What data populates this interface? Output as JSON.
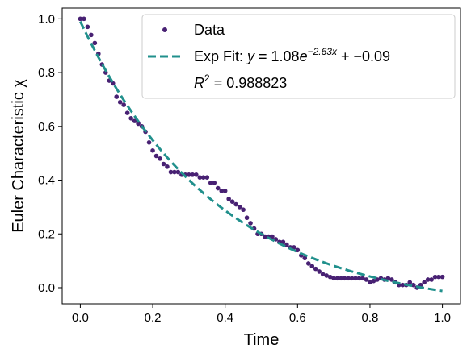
{
  "chart_data": {
    "type": "scatter",
    "xlabel": "Time",
    "ylabel": "Euler Characteristic χ",
    "xlim": [
      -0.05,
      1.05
    ],
    "ylim": [
      -0.06,
      1.04
    ],
    "xticks": [
      0.0,
      0.2,
      0.4,
      0.6,
      0.8,
      1.0
    ],
    "yticks": [
      0.0,
      0.2,
      0.4,
      0.6,
      0.8,
      1.0
    ],
    "xtick_labels": [
      "0.0",
      "0.2",
      "0.4",
      "0.6",
      "0.8",
      "1.0"
    ],
    "ytick_labels": [
      "0.0",
      "0.2",
      "0.4",
      "0.6",
      "0.8",
      "1.0"
    ],
    "grid": false,
    "legend_position": "top-right",
    "colors": {
      "data": "#482173",
      "fit": "#21908c"
    },
    "series": [
      {
        "name": "Data",
        "kind": "scatter",
        "x": [
          0.0,
          0.01,
          0.02,
          0.03,
          0.04,
          0.05,
          0.06,
          0.07,
          0.08,
          0.09,
          0.1,
          0.11,
          0.12,
          0.13,
          0.14,
          0.15,
          0.16,
          0.17,
          0.18,
          0.19,
          0.2,
          0.21,
          0.22,
          0.23,
          0.24,
          0.25,
          0.26,
          0.27,
          0.28,
          0.29,
          0.3,
          0.31,
          0.32,
          0.33,
          0.34,
          0.35,
          0.36,
          0.37,
          0.38,
          0.39,
          0.4,
          0.41,
          0.42,
          0.43,
          0.44,
          0.45,
          0.46,
          0.47,
          0.48,
          0.49,
          0.5,
          0.51,
          0.52,
          0.53,
          0.54,
          0.55,
          0.56,
          0.57,
          0.58,
          0.59,
          0.6,
          0.61,
          0.62,
          0.63,
          0.64,
          0.65,
          0.66,
          0.67,
          0.68,
          0.69,
          0.7,
          0.71,
          0.72,
          0.73,
          0.74,
          0.75,
          0.76,
          0.77,
          0.78,
          0.79,
          0.8,
          0.81,
          0.82,
          0.83,
          0.84,
          0.85,
          0.86,
          0.87,
          0.88,
          0.89,
          0.9,
          0.91,
          0.92,
          0.93,
          0.94,
          0.95,
          0.96,
          0.97,
          0.98,
          0.99,
          1.0
        ],
        "y": [
          1.0,
          1.0,
          0.97,
          0.94,
          0.91,
          0.87,
          0.83,
          0.8,
          0.77,
          0.76,
          0.71,
          0.69,
          0.68,
          0.65,
          0.63,
          0.62,
          0.61,
          0.6,
          0.58,
          0.54,
          0.51,
          0.49,
          0.48,
          0.46,
          0.45,
          0.43,
          0.43,
          0.43,
          0.42,
          0.42,
          0.42,
          0.42,
          0.42,
          0.41,
          0.41,
          0.41,
          0.39,
          0.39,
          0.37,
          0.36,
          0.36,
          0.33,
          0.32,
          0.31,
          0.3,
          0.29,
          0.26,
          0.24,
          0.22,
          0.2,
          0.2,
          0.19,
          0.19,
          0.19,
          0.18,
          0.17,
          0.17,
          0.16,
          0.15,
          0.15,
          0.14,
          0.12,
          0.11,
          0.09,
          0.08,
          0.07,
          0.06,
          0.05,
          0.045,
          0.04,
          0.035,
          0.035,
          0.035,
          0.035,
          0.035,
          0.035,
          0.035,
          0.035,
          0.035,
          0.03,
          0.02,
          0.025,
          0.03,
          0.035,
          0.03,
          0.035,
          0.03,
          0.02,
          0.01,
          0.01,
          0.01,
          0.02,
          0.01,
          0.0,
          0.01,
          0.02,
          0.03,
          0.03,
          0.04,
          0.04,
          0.04
        ]
      },
      {
        "name": "Exp Fit: y = 1.08e^{-2.63x} + -0.09",
        "kind": "line",
        "style": "dashed",
        "model": {
          "a": 1.08,
          "b": -2.63,
          "c": -0.09
        }
      }
    ],
    "legend": {
      "data_label": "Data",
      "fit_prefix": "Exp Fit: ",
      "fit_y": "y",
      "fit_eq_a": " = 1.08",
      "fit_e": "e",
      "fit_exp": "−2.63x",
      "fit_tail": " + −0.09",
      "r2_r": "R",
      "r2_sup": "2",
      "r2_value": " = 0.988823"
    }
  }
}
